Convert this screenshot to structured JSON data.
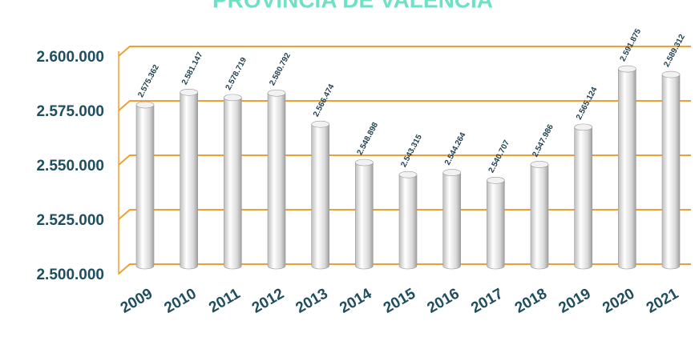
{
  "chart_data": {
    "type": "bar",
    "title": "PROVINCIA DE VALENCIA",
    "categories": [
      "2009",
      "2010",
      "2011",
      "2012",
      "2013",
      "2014",
      "2015",
      "2016",
      "2017",
      "2018",
      "2019",
      "2020",
      "2021"
    ],
    "values": [
      2575362,
      2581147,
      2578719,
      2580792,
      2566474,
      2548898,
      2543315,
      2544264,
      2540707,
      2547986,
      2565124,
      2591875,
      2589312
    ],
    "value_labels": [
      "2.575.362",
      "2.581.147",
      "2.578.719",
      "2.580.792",
      "2.566.474",
      "2.548.898",
      "2.543.315",
      "2.544.264",
      "2.540.707",
      "2.547.986",
      "2.565.124",
      "2.591.875",
      "2.589.312"
    ],
    "color": "#e6e6e6",
    "ylim": [
      2500000,
      2600000
    ],
    "yticks": [
      {
        "value": 2500000,
        "label": "2.500.000"
      },
      {
        "value": 2525000,
        "label": "2.525.000"
      },
      {
        "value": 2550000,
        "label": "2.550.000"
      },
      {
        "value": 2575000,
        "label": "2.575.000"
      },
      {
        "value": 2600000,
        "label": "2.600.000"
      }
    ],
    "grid": true
  }
}
